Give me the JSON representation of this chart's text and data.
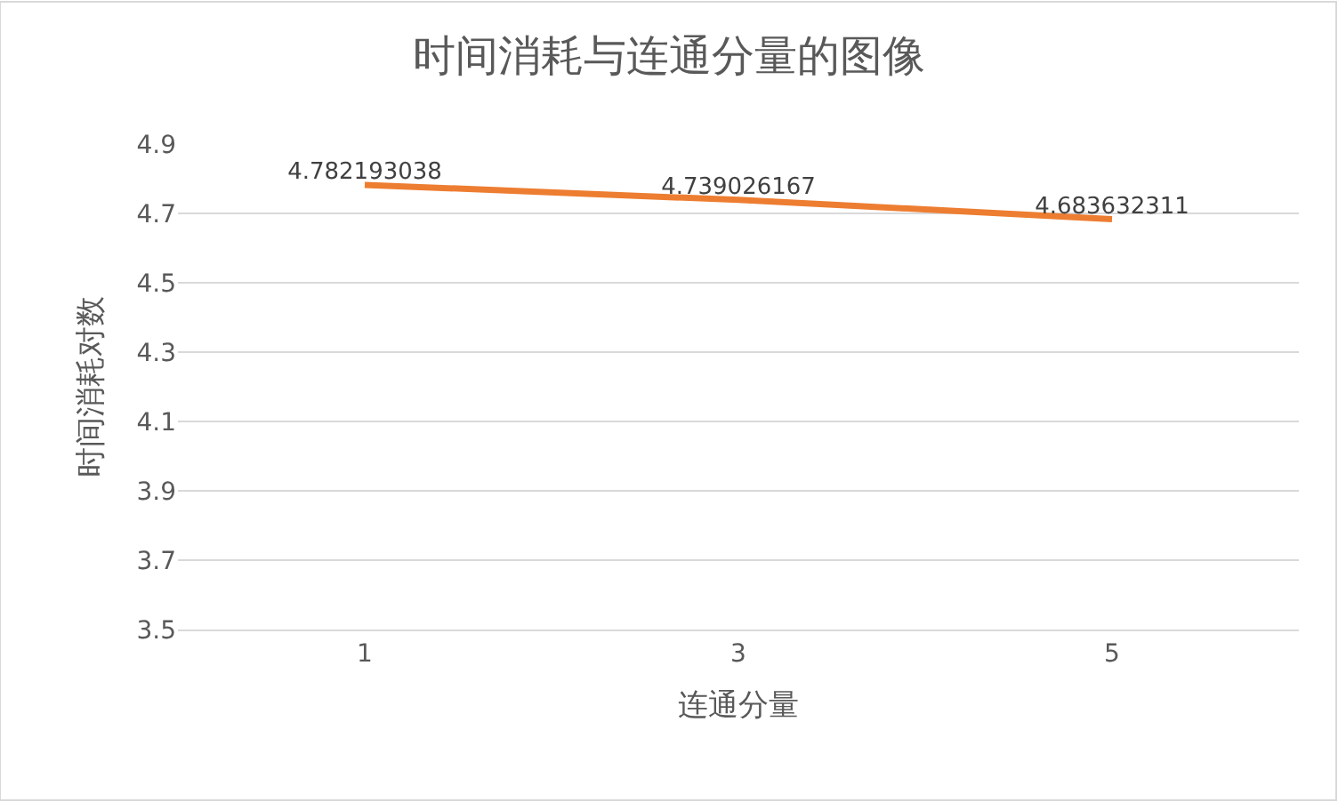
{
  "chart_data": {
    "type": "line",
    "title": "时间消耗与连通分量的图像",
    "xlabel": "连通分量",
    "ylabel": "时间消耗对数",
    "categories": [
      "1",
      "3",
      "5"
    ],
    "series": [
      {
        "color": "#ed7d31",
        "values": [
          4.782193038,
          4.739026167,
          4.683632311
        ]
      }
    ],
    "data_labels": true,
    "ylim": [
      3.5,
      4.9
    ],
    "yticks": [
      3.5,
      3.7,
      3.9,
      4.1,
      4.3,
      4.5,
      4.7,
      4.9
    ],
    "grid": "y",
    "legend": false,
    "marker": "none",
    "line_style": "solid"
  }
}
